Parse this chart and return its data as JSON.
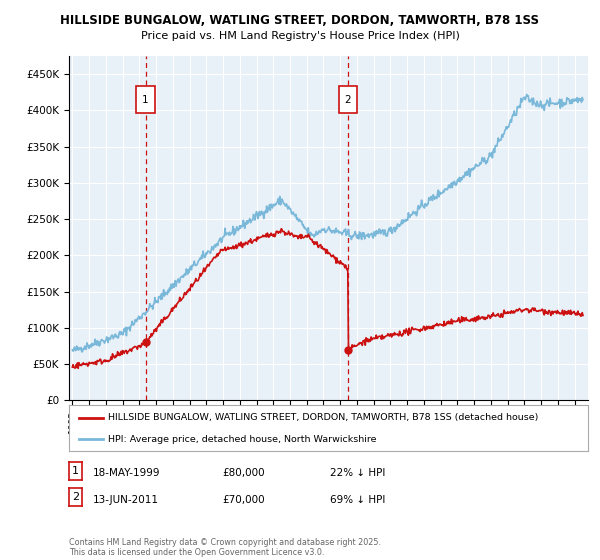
{
  "title_line1": "HILLSIDE BUNGALOW, WATLING STREET, DORDON, TAMWORTH, B78 1SS",
  "title_line2": "Price paid vs. HM Land Registry's House Price Index (HPI)",
  "ylabel_ticks": [
    "£0",
    "£50K",
    "£100K",
    "£150K",
    "£200K",
    "£250K",
    "£300K",
    "£350K",
    "£400K",
    "£450K"
  ],
  "ytick_vals": [
    0,
    50000,
    100000,
    150000,
    200000,
    250000,
    300000,
    350000,
    400000,
    450000
  ],
  "ylim": [
    0,
    475000
  ],
  "xlim_start": 1994.8,
  "xlim_end": 2025.8,
  "hpi_color": "#7ab8d9",
  "price_color": "#cc1111",
  "plot_bg_color": "#e8f0f8",
  "grid_color": "#ffffff",
  "transaction1_x": 1999.37,
  "transaction1_price": 80000,
  "transaction2_x": 2011.45,
  "transaction2_price": 70000,
  "legend_label_red": "HILLSIDE BUNGALOW, WATLING STREET, DORDON, TAMWORTH, B78 1SS (detached house)",
  "legend_label_blue": "HPI: Average price, detached house, North Warwickshire",
  "footnote1_date": "18-MAY-1999",
  "footnote1_price": "£80,000",
  "footnote1_hpi": "22% ↓ HPI",
  "footnote2_date": "13-JUN-2011",
  "footnote2_price": "£70,000",
  "footnote2_hpi": "69% ↓ HPI",
  "copyright_text": "Contains HM Land Registry data © Crown copyright and database right 2025.\nThis data is licensed under the Open Government Licence v3.0."
}
